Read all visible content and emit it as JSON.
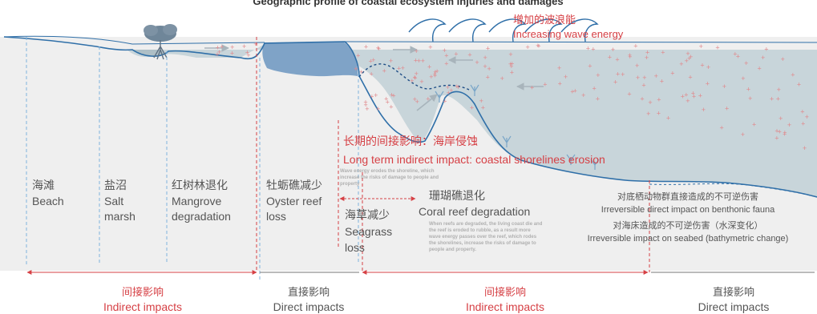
{
  "title": "Geographic profile of coastal ecosystem injuries and damages",
  "wave": {
    "cn": "增加的波浪能",
    "en": "Increasing wave energy"
  },
  "erosion": {
    "cn": "长期的间接影响：海岸侵蚀",
    "en": "Long term indirect impact: coastal shorelines erosion"
  },
  "erosion_note": [
    "Wave energy erodes the shoreline, which",
    "increase the risks of damage to people and",
    "property"
  ],
  "zones": {
    "beach": {
      "cn": "海滩",
      "en": "Beach"
    },
    "saltmarsh": {
      "cn": "盐沼",
      "en": [
        "Salt",
        "marsh"
      ]
    },
    "mangrove": {
      "cn": "红树林退化",
      "en": [
        "Mangrove",
        "degradation"
      ]
    },
    "oyster": {
      "cn": "牡蛎礁减少",
      "en": [
        "Oyster reef",
        "loss"
      ]
    },
    "seagrass": {
      "cn": "海草减少",
      "en": [
        "Seagrass",
        "loss"
      ]
    },
    "coral": {
      "cn": "珊瑚礁退化",
      "en": "Coral reef degradation"
    }
  },
  "coral_note": [
    "When reefs are degraded, the living coast die and",
    "the reef is eroded to rubble, as a result more",
    "wave energy passes over the reef, which rodes",
    "the shorelines, increase the risks of damage to",
    "people and property."
  ],
  "benthic": {
    "cn": "对底栖动物群直接造成的不可逆伤害",
    "en": "Irreversible direct impact on benthonic fauna"
  },
  "seabed": {
    "cn": "对海床造成的不可逆伤害（水深变化）",
    "en": "Irreversible impact on seabed (bathymetric change)"
  },
  "impacts": [
    {
      "cn": "间接影响",
      "en": "Indirect impacts",
      "type": "indirect"
    },
    {
      "cn": "直接影响",
      "en": "Direct impacts",
      "type": "direct"
    },
    {
      "cn": "间接影响",
      "en": "Indirect impacts",
      "type": "indirect"
    },
    {
      "cn": "直接影响",
      "en": "Direct impacts",
      "type": "direct"
    }
  ],
  "colors": {
    "red": "#d64045",
    "water": "#c8d5da",
    "line": "#2f6fa8",
    "oyster": "#7fa3c7",
    "dash_blue": "#7fb3dd",
    "text": "#555555"
  }
}
